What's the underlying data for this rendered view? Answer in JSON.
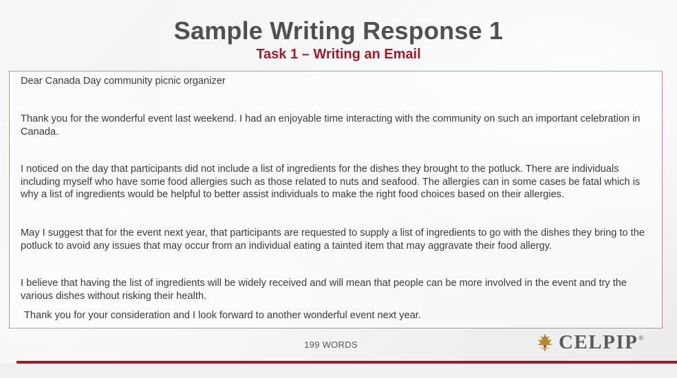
{
  "header": {
    "title": "Sample Writing Response 1",
    "subtitle": "Task 1 – Writing an Email"
  },
  "email": {
    "paragraphs": [
      "Dear Canada Day community picnic organizer",
      "Thank you for the wonderful event last weekend. I had an enjoyable time interacting with the community on such an important celebration in Canada.",
      "I noticed on the day that participants did not include a list of ingredients for the dishes they brought to the potluck. There are individuals including myself who have some food allergies such as those related to nuts and seafood. The allergies can in some cases be fatal which is why a list of ingredients would be helpful to better assist individuals to make the right food choices based on their allergies.",
      "May I suggest that for the event next year, that participants are requested to supply a list of ingredients to go with the dishes they bring to the potluck to avoid any issues that may occur from an individual eating a tainted item that may aggravate their food allergy.",
      "I believe that having the list of ingredients will be widely received and will mean that people can be more involved in the event and try the various dishes without risking their health.",
      "Thank you for your consideration and I look forward to another wonderful event next year."
    ]
  },
  "footer": {
    "word_count": "199 WORDS",
    "logo_text": "CELPIP",
    "logo_reg": "®"
  },
  "colors": {
    "accent": "#a3192a",
    "title": "#505050",
    "box_border": "#d7858f"
  }
}
